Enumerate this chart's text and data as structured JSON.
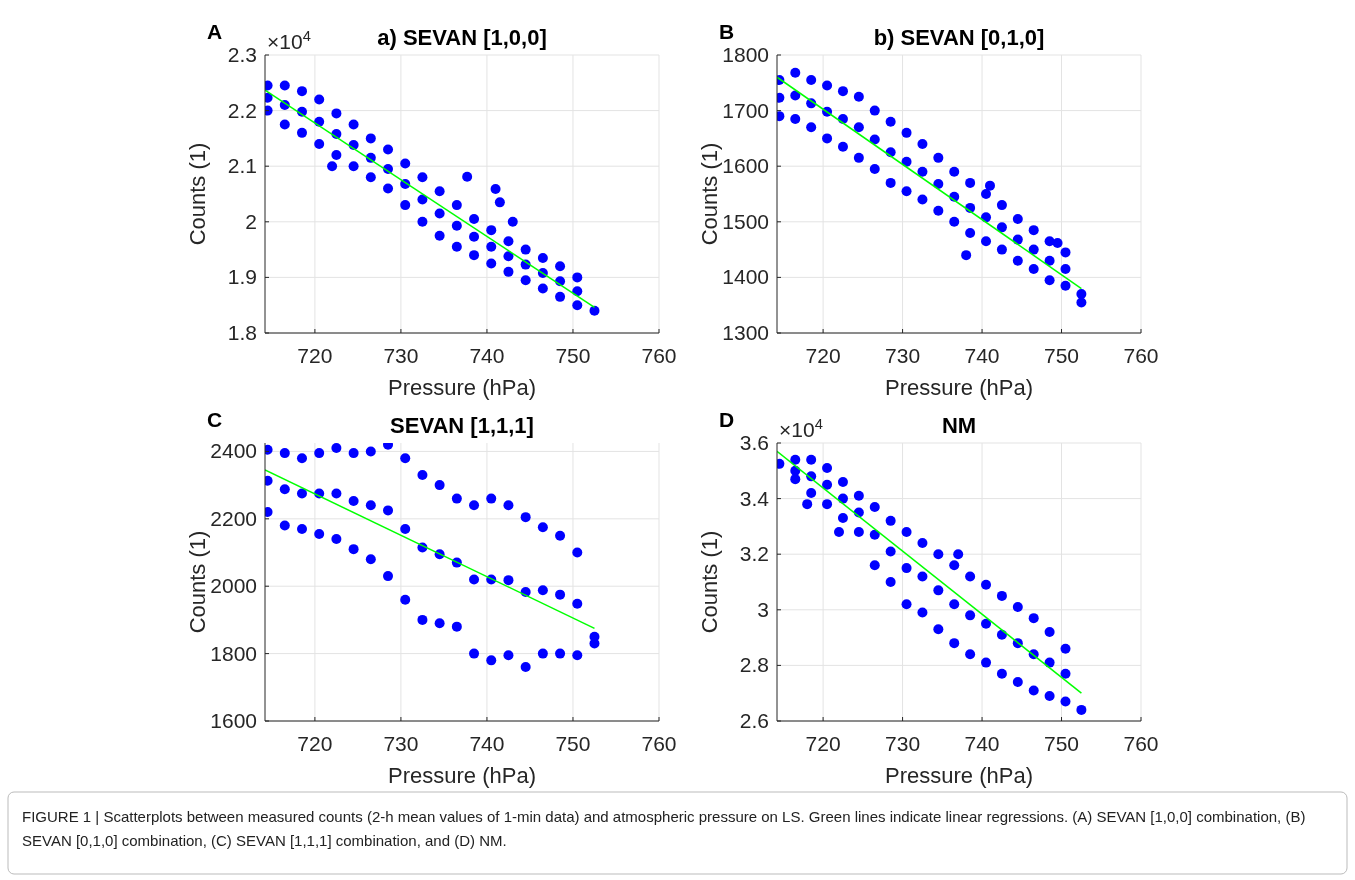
{
  "chart_data": [
    {
      "type": "scatter",
      "title": "a) SEVAN [1,0,0]",
      "xlabel": "Pressure (hPa)",
      "ylabel": "Counts (1)",
      "xlim": [
        714.2,
        760
      ],
      "xticks": [
        720,
        730,
        740,
        750,
        760
      ],
      "ylim": [
        1.8,
        2.3
      ],
      "yticks": [
        1.8,
        1.9,
        {
          "value": 2,
          "label": "2"
        },
        2.1,
        2.2,
        2.3
      ],
      "grid": true,
      "annotations": [
        "A",
        "×10$^{4}$"
      ],
      "series": [
        {
          "color": "#0000ff",
          "x": [
            714.5,
            714.5,
            714.5,
            716.5,
            716.5,
            716.5,
            718.5,
            718.5,
            718.5,
            720.5,
            720.5,
            720.5,
            722.5,
            722.5,
            722.5,
            724.5,
            724.5,
            724.5,
            726.5,
            726.5,
            726.5,
            728.5,
            728.5,
            728.5,
            730.5,
            730.5,
            730.5,
            732.5,
            732.5,
            732.5,
            734.5,
            734.5,
            734.5,
            736.5,
            736.5,
            736.5,
            738.5,
            738.5,
            738.5,
            740.5,
            740.5,
            740.5,
            742.5,
            742.5,
            742.5,
            744.5,
            744.5,
            744.5,
            746.5,
            746.5,
            746.5,
            748.5,
            748.5,
            748.5,
            750.5,
            750.5,
            750.5,
            752.5,
            737.7,
            741,
            741.5,
            743,
            722
          ],
          "values": [
            2.245,
            2.223,
            2.2,
            2.245,
            2.21,
            2.175,
            2.235,
            2.198,
            2.16,
            2.22,
            2.18,
            2.14,
            2.195,
            2.158,
            2.12,
            2.175,
            2.138,
            2.1,
            2.15,
            2.115,
            2.08,
            2.13,
            2.095,
            2.06,
            2.105,
            2.068,
            2.03,
            2.08,
            2.04,
            2.0,
            2.055,
            2.015,
            1.975,
            2.03,
            1.993,
            1.955,
            2.005,
            1.973,
            1.94,
            1.985,
            1.955,
            1.925,
            1.965,
            1.938,
            1.91,
            1.95,
            1.923,
            1.895,
            1.935,
            1.908,
            1.88,
            1.92,
            1.893,
            1.865,
            1.9,
            1.875,
            1.85,
            1.84,
            2.081,
            2.059,
            2.035,
            2.0,
            2.1
          ],
          "marker": "circle"
        },
        {
          "type": "line",
          "color": "#00ff00",
          "x": [
            714.2,
            752.5
          ],
          "values": [
            2.237,
            1.846
          ],
          "marker": "none"
        }
      ]
    },
    {
      "type": "scatter",
      "title": "b) SEVAN [0,1,0]",
      "xlabel": "Pressure (hPa)",
      "ylabel": "Counts (1)",
      "xlim": [
        714.2,
        760
      ],
      "xticks": [
        720,
        730,
        740,
        750,
        760
      ],
      "ylim": [
        1300,
        1800
      ],
      "yticks": [
        1300,
        1400,
        1500,
        1600,
        1700,
        1800
      ],
      "grid": true,
      "annotations": [
        "B"
      ],
      "series": [
        {
          "color": "#0000ff",
          "x": [
            714.5,
            714.5,
            714.5,
            716.5,
            716.5,
            716.5,
            718.5,
            718.5,
            718.5,
            720.5,
            720.5,
            720.5,
            722.5,
            722.5,
            722.5,
            724.5,
            724.5,
            724.5,
            726.5,
            726.5,
            726.5,
            728.5,
            728.5,
            728.5,
            730.5,
            730.5,
            730.5,
            732.5,
            732.5,
            732.5,
            734.5,
            734.5,
            734.5,
            736.5,
            736.5,
            736.5,
            738.5,
            738.5,
            738.5,
            740.5,
            740.5,
            740.5,
            742.5,
            742.5,
            742.5,
            744.5,
            744.5,
            744.5,
            746.5,
            746.5,
            746.5,
            748.5,
            748.5,
            748.5,
            750.5,
            750.5,
            750.5,
            752.5,
            752.5,
            738,
            741,
            749.5
          ],
          "values": [
            1755,
            1723,
            1690,
            1768,
            1727,
            1685,
            1755,
            1713,
            1670,
            1745,
            1698,
            1650,
            1735,
            1685,
            1635,
            1725,
            1670,
            1615,
            1700,
            1648,
            1595,
            1680,
            1625,
            1570,
            1660,
            1608,
            1555,
            1640,
            1590,
            1540,
            1615,
            1568,
            1520,
            1590,
            1545,
            1500,
            1570,
            1525,
            1480,
            1550,
            1508,
            1465,
            1530,
            1490,
            1450,
            1505,
            1468,
            1430,
            1485,
            1450,
            1415,
            1465,
            1430,
            1395,
            1445,
            1415,
            1385,
            1370,
            1355,
            1440,
            1565,
            1462
          ],
          "marker": "circle"
        },
        {
          "type": "line",
          "color": "#00ff00",
          "x": [
            714.2,
            752.5
          ],
          "values": [
            1760,
            1380
          ],
          "marker": "none"
        }
      ]
    },
    {
      "type": "scatter",
      "title": "SEVAN [1,1,1]",
      "xlabel": "Pressure (hPa)",
      "ylabel": "Counts (1)",
      "xlim": [
        714.2,
        760
      ],
      "xticks": [
        720,
        730,
        740,
        750,
        760
      ],
      "ylim": [
        1600,
        2425
      ],
      "yticks": [
        1600,
        1800,
        2000,
        2200,
        2400
      ],
      "grid": true,
      "annotations": [
        "C"
      ],
      "series": [
        {
          "color": "#0000ff",
          "x": [
            714.5,
            714.5,
            714.5,
            716.5,
            716.5,
            716.5,
            718.5,
            718.5,
            718.5,
            720.5,
            720.5,
            720.5,
            722.5,
            722.5,
            722.5,
            724.5,
            724.5,
            724.5,
            726.5,
            726.5,
            726.5,
            728.5,
            728.5,
            728.5,
            730.5,
            730.5,
            730.5,
            732.5,
            732.5,
            732.5,
            734.5,
            734.5,
            734.5,
            736.5,
            736.5,
            736.5,
            738.5,
            738.5,
            738.5,
            740.5,
            740.5,
            740.5,
            742.5,
            742.5,
            742.5,
            744.5,
            744.5,
            744.5,
            746.5,
            746.5,
            746.5,
            748.5,
            748.5,
            748.5,
            750.5,
            750.5,
            750.5,
            752.5,
            752.5
          ],
          "values": [
            2405,
            2313,
            2220,
            2395,
            2288,
            2180,
            2380,
            2275,
            2170,
            2395,
            2275,
            2155,
            2410,
            2275,
            2140,
            2395,
            2253,
            2110,
            2400,
            2240,
            2080,
            2420,
            2225,
            2030,
            2380,
            2170,
            1960,
            2330,
            2115,
            1900,
            2300,
            2095,
            1890,
            2260,
            2070,
            1880,
            2240,
            2020,
            1800,
            2260,
            2020,
            1780,
            2240,
            2018,
            1795,
            2205,
            1983,
            1760,
            2175,
            1988,
            1800,
            2150,
            1975,
            1800,
            2100,
            1948,
            1795,
            1850,
            1830
          ],
          "marker": "circle"
        },
        {
          "type": "line",
          "color": "#00ff00",
          "x": [
            714.2,
            752.5
          ],
          "values": [
            2345,
            1875
          ],
          "marker": "none"
        }
      ]
    },
    {
      "type": "scatter",
      "title": "NM",
      "xlabel": "Pressure (hPa)",
      "ylabel": "Counts (1)",
      "xlim": [
        714.2,
        760
      ],
      "xticks": [
        720,
        730,
        740,
        750,
        760
      ],
      "ylim": [
        2.6,
        3.6
      ],
      "yticks": [
        2.6,
        2.8,
        {
          "value": 3,
          "label": "3"
        },
        3.2,
        3.4,
        3.6
      ],
      "grid": true,
      "annotations": [
        "D",
        "×10$^{4}$",
        "FIGURE 1 | Scatterplots between measured counts (2-h mean values of 1-min data) and atmospheric pressure on LS. Green lines indicate linear regressions. (A) SEVAN [1,0,0] combination, (B) SEVAN [0,1,0] combination, (C) SEVAN [1,1,1] combination, and (D) NM."
      ],
      "series": [
        {
          "color": "#0000ff",
          "x": [
            714.5,
            716.5,
            716.5,
            716.5,
            718.5,
            718.5,
            718.5,
            720.5,
            720.5,
            720.5,
            722.5,
            722.5,
            722.5,
            724.5,
            724.5,
            724.5,
            726.5,
            726.5,
            726.5,
            728.5,
            728.5,
            728.5,
            730.5,
            730.5,
            730.5,
            732.5,
            732.5,
            732.5,
            734.5,
            734.5,
            734.5,
            736.5,
            736.5,
            736.5,
            738.5,
            738.5,
            738.5,
            740.5,
            740.5,
            740.5,
            742.5,
            742.5,
            742.5,
            744.5,
            744.5,
            744.5,
            746.5,
            746.5,
            746.5,
            748.5,
            748.5,
            748.5,
            750.5,
            750.5,
            750.5,
            752.5,
            737,
            722,
            718
          ],
          "values": [
            3.525,
            3.54,
            3.5,
            3.47,
            3.54,
            3.48,
            3.42,
            3.51,
            3.45,
            3.38,
            3.46,
            3.4,
            3.33,
            3.41,
            3.35,
            3.28,
            3.37,
            3.27,
            3.16,
            3.32,
            3.21,
            3.1,
            3.28,
            3.15,
            3.02,
            3.24,
            3.12,
            2.99,
            3.2,
            3.07,
            2.93,
            3.16,
            3.02,
            2.88,
            3.12,
            2.98,
            2.84,
            3.09,
            2.95,
            2.81,
            3.05,
            2.91,
            2.77,
            3.01,
            2.88,
            2.74,
            2.97,
            2.84,
            2.71,
            2.92,
            2.81,
            2.69,
            2.86,
            2.77,
            2.67,
            2.64,
            3.2,
            3.28,
            3.38
          ],
          "marker": "circle"
        },
        {
          "type": "line",
          "color": "#00ff00",
          "x": [
            714.2,
            752.5
          ],
          "values": [
            3.57,
            2.7
          ],
          "marker": "none"
        }
      ]
    }
  ]
}
